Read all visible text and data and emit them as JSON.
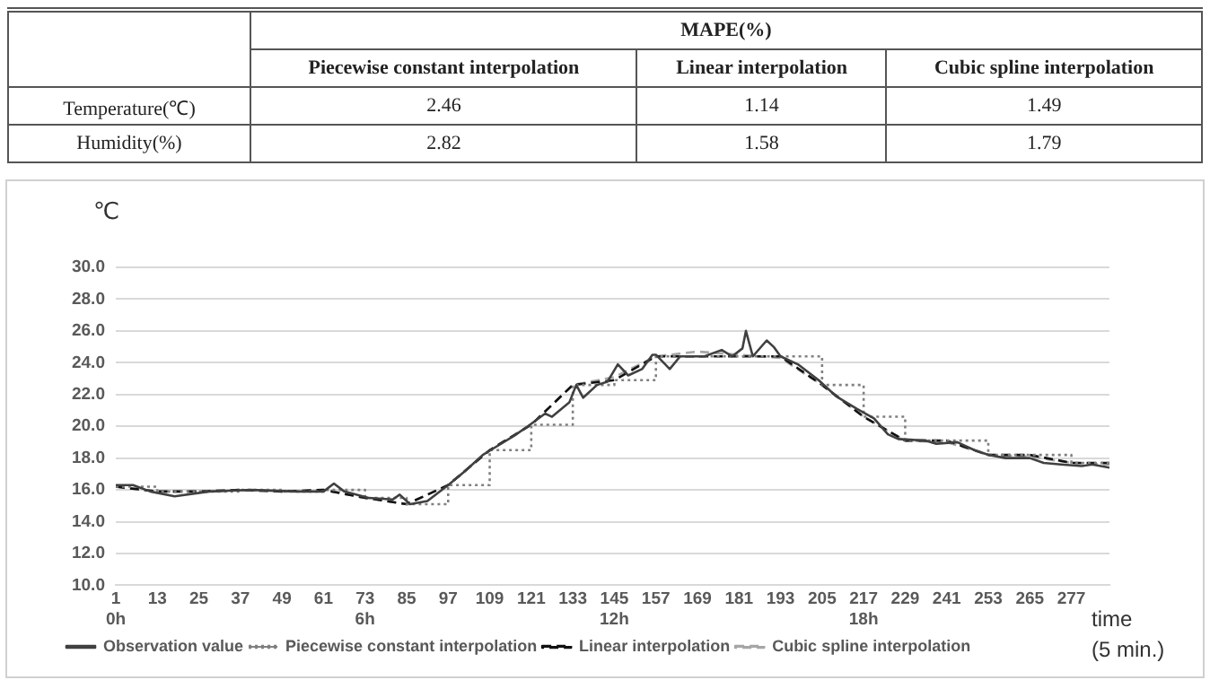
{
  "chart_data": [
    {
      "type": "heatmap",
      "title": "MAPE(%)",
      "categories": [
        "Piecewise constant interpolation",
        "Linear interpolation",
        "Cubic spline interpolation"
      ],
      "y_categories": [
        "Temperature(℃)",
        "Humidity(%)"
      ],
      "cells": [
        [
          2.46,
          1.14,
          1.49
        ],
        [
          2.82,
          1.58,
          1.79
        ]
      ],
      "data_labels": true
    },
    {
      "type": "line",
      "xlabel": "time (5 min.)",
      "ylabel": "℃",
      "xlim": [
        1,
        288
      ],
      "xticks": [
        {
          "value": 1,
          "label": "1\n0h"
        },
        13,
        25,
        37,
        49,
        61,
        {
          "value": 73,
          "label": "73\n6h"
        },
        85,
        97,
        109,
        121,
        133,
        {
          "value": 145,
          "label": "145\n12h"
        },
        157,
        169,
        181,
        193,
        205,
        {
          "value": 217,
          "label": "217\n18h"
        },
        229,
        241,
        253,
        265,
        277
      ],
      "ylim": [
        10,
        30
      ],
      "yticks": [
        {
          "value": 10,
          "label": "10.0"
        },
        {
          "value": 12,
          "label": "12.0"
        },
        {
          "value": 14,
          "label": "14.0"
        },
        {
          "value": 16,
          "label": "16.0"
        },
        {
          "value": 18,
          "label": "18.0"
        },
        {
          "value": 20,
          "label": "20.0"
        },
        {
          "value": 22,
          "label": "22.0"
        },
        {
          "value": 24,
          "label": "24.0"
        },
        {
          "value": 26,
          "label": "26.0"
        },
        {
          "value": 28,
          "label": "28.0"
        },
        {
          "value": 30,
          "label": "30.0"
        }
      ],
      "grid": "y",
      "legend": "bottom",
      "marker": "none",
      "series": [
        {
          "name": "Observation value",
          "type": "line",
          "line_style": "solid",
          "color": "#404040",
          "x": [
            1,
            6,
            11,
            18,
            28,
            40,
            53,
            61,
            64,
            67,
            74,
            81,
            83,
            86,
            91,
            97,
            102,
            107,
            110,
            116,
            120,
            125,
            127,
            132,
            134,
            136,
            140,
            143,
            146,
            149,
            153,
            156,
            157,
            161,
            164,
            171,
            176,
            179,
            182,
            183,
            185,
            189,
            191,
            193,
            198,
            204,
            209,
            215,
            220,
            224,
            227,
            235,
            238,
            244,
            249,
            253,
            258,
            265,
            269,
            274,
            280,
            283,
            288
          ],
          "values": [
            16.3,
            16.3,
            15.9,
            15.6,
            15.9,
            16.0,
            15.9,
            15.9,
            16.4,
            15.9,
            15.5,
            15.4,
            15.7,
            15.1,
            15.3,
            16.3,
            17.2,
            18.2,
            18.6,
            19.4,
            20.0,
            20.8,
            20.6,
            21.5,
            22.6,
            21.8,
            22.6,
            22.8,
            23.9,
            23.2,
            23.6,
            24.5,
            24.5,
            23.6,
            24.4,
            24.4,
            24.8,
            24.4,
            24.9,
            26.0,
            24.4,
            25.4,
            25.0,
            24.4,
            23.9,
            22.9,
            21.9,
            21.1,
            20.5,
            19.5,
            19.2,
            19.1,
            18.9,
            19.0,
            18.5,
            18.2,
            18.0,
            18.0,
            17.7,
            17.6,
            17.5,
            17.6,
            17.4
          ]
        },
        {
          "name": "Piecewise constant interpolation",
          "type": "step",
          "line_style": "dotted",
          "color": "#808080",
          "x": [
            1,
            13,
            25,
            37,
            49,
            61,
            73,
            85,
            97,
            109,
            121,
            133,
            145,
            157,
            169,
            181,
            193,
            205,
            217,
            229,
            241,
            253,
            265,
            277,
            288
          ],
          "values": [
            16.2,
            15.9,
            15.9,
            16.0,
            15.9,
            16.0,
            15.5,
            15.1,
            16.3,
            18.5,
            20.1,
            22.6,
            22.9,
            24.4,
            24.4,
            24.4,
            24.4,
            22.6,
            20.6,
            19.1,
            19.1,
            18.2,
            18.2,
            17.7,
            17.7
          ]
        },
        {
          "name": "Linear interpolation",
          "type": "line",
          "line_style": "dashed",
          "color": "#111111",
          "x": [
            1,
            13,
            25,
            37,
            49,
            61,
            73,
            85,
            97,
            109,
            121,
            133,
            145,
            157,
            169,
            181,
            193,
            205,
            217,
            229,
            241,
            253,
            265,
            277,
            288
          ],
          "values": [
            16.2,
            15.9,
            15.9,
            16.0,
            15.9,
            16.0,
            15.5,
            15.1,
            16.3,
            18.5,
            20.1,
            22.6,
            22.9,
            24.4,
            24.4,
            24.4,
            24.4,
            22.6,
            20.6,
            19.1,
            19.1,
            18.2,
            18.2,
            17.7,
            17.7
          ]
        },
        {
          "name": "Cubic spline interpolation",
          "type": "line",
          "line_style": "dashed",
          "color": "#a6a6a6",
          "x": [
            1,
            13,
            25,
            37,
            49,
            61,
            73,
            85,
            97,
            109,
            121,
            133,
            145,
            157,
            169,
            181,
            193,
            205,
            217,
            229,
            241,
            253,
            265,
            277,
            288
          ],
          "values": [
            16.2,
            15.9,
            15.9,
            16.0,
            15.9,
            16.0,
            15.5,
            15.1,
            16.3,
            18.5,
            20.1,
            22.6,
            23.1,
            24.4,
            24.7,
            24.5,
            24.3,
            22.6,
            20.6,
            19.1,
            19.0,
            18.2,
            18.1,
            17.7,
            17.6
          ]
        }
      ]
    }
  ]
}
